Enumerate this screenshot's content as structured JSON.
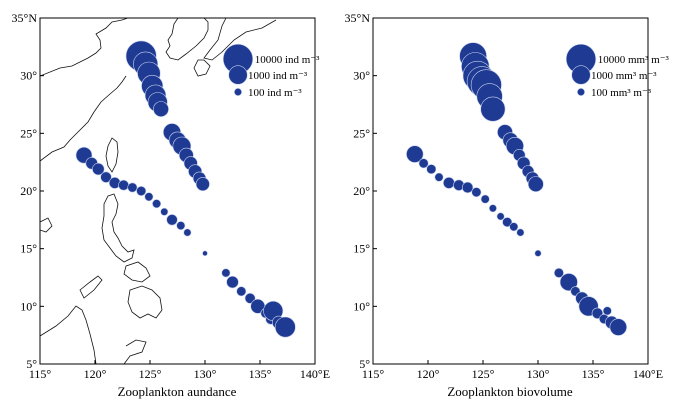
{
  "panels": [
    {
      "id": "abundance",
      "xlabel": "Zooplankton aundance",
      "legend": [
        {
          "label": "10000 ind m⁻³",
          "value": 10000
        },
        {
          "label": "1000 ind m⁻³",
          "value": 1000
        },
        {
          "label": "100 ind m⁻³",
          "value": 100
        }
      ],
      "stations": [
        {
          "lon": 124.2,
          "lat": 31.7,
          "value": 12000
        },
        {
          "lon": 124.6,
          "lat": 31.0,
          "value": 3500
        },
        {
          "lon": 124.9,
          "lat": 30.2,
          "value": 2500
        },
        {
          "lon": 125.2,
          "lat": 29.1,
          "value": 1800
        },
        {
          "lon": 125.5,
          "lat": 28.3,
          "value": 1600
        },
        {
          "lon": 125.7,
          "lat": 27.7,
          "value": 1200
        },
        {
          "lon": 126.0,
          "lat": 27.1,
          "value": 500
        },
        {
          "lon": 127.0,
          "lat": 25.1,
          "value": 800
        },
        {
          "lon": 127.5,
          "lat": 24.4,
          "value": 700
        },
        {
          "lon": 127.9,
          "lat": 23.9,
          "value": 900
        },
        {
          "lon": 128.3,
          "lat": 23.1,
          "value": 400
        },
        {
          "lon": 128.7,
          "lat": 22.4,
          "value": 350
        },
        {
          "lon": 129.1,
          "lat": 21.7,
          "value": 350
        },
        {
          "lon": 129.5,
          "lat": 21.1,
          "value": 300
        },
        {
          "lon": 129.8,
          "lat": 20.6,
          "value": 350
        },
        {
          "lon": 119.0,
          "lat": 23.1,
          "value": 600
        },
        {
          "lon": 119.7,
          "lat": 22.4,
          "value": 250
        },
        {
          "lon": 120.3,
          "lat": 21.9,
          "value": 250
        },
        {
          "lon": 121.0,
          "lat": 21.2,
          "value": 200
        },
        {
          "lon": 121.8,
          "lat": 20.7,
          "value": 220
        },
        {
          "lon": 122.6,
          "lat": 20.5,
          "value": 180
        },
        {
          "lon": 123.4,
          "lat": 20.3,
          "value": 150
        },
        {
          "lon": 124.2,
          "lat": 20.0,
          "value": 150
        },
        {
          "lon": 124.9,
          "lat": 19.5,
          "value": 120
        },
        {
          "lon": 125.6,
          "lat": 18.9,
          "value": 120
        },
        {
          "lon": 126.3,
          "lat": 18.2,
          "value": 100
        },
        {
          "lon": 127.0,
          "lat": 17.5,
          "value": 200
        },
        {
          "lon": 127.8,
          "lat": 17.0,
          "value": 120
        },
        {
          "lon": 128.4,
          "lat": 16.4,
          "value": 100
        },
        {
          "lon": 130.0,
          "lat": 14.6,
          "value": 60
        },
        {
          "lon": 131.9,
          "lat": 12.9,
          "value": 120
        },
        {
          "lon": 132.5,
          "lat": 12.1,
          "value": 250
        },
        {
          "lon": 133.3,
          "lat": 11.3,
          "value": 150
        },
        {
          "lon": 134.1,
          "lat": 10.7,
          "value": 180
        },
        {
          "lon": 134.8,
          "lat": 10.0,
          "value": 400
        },
        {
          "lon": 135.5,
          "lat": 9.4,
          "value": 150
        },
        {
          "lon": 136.0,
          "lat": 8.9,
          "value": 200
        },
        {
          "lon": 136.2,
          "lat": 9.6,
          "value": 1200
        },
        {
          "lon": 136.7,
          "lat": 8.6,
          "value": 300
        },
        {
          "lon": 137.3,
          "lat": 8.2,
          "value": 1400
        }
      ]
    },
    {
      "id": "biovolume",
      "xlabel": "Zooplankton biovolume",
      "legend": [
        {
          "label": "10000 mm³ m⁻³",
          "value": 10000
        },
        {
          "label": "1000 mm³ m⁻³",
          "value": 1000
        },
        {
          "label": "100 mm³ m⁻³",
          "value": 100
        }
      ],
      "stations": [
        {
          "lon": 124.1,
          "lat": 31.7,
          "value": 6000
        },
        {
          "lon": 124.3,
          "lat": 30.8,
          "value": 7000
        },
        {
          "lon": 124.5,
          "lat": 30.0,
          "value": 9000
        },
        {
          "lon": 124.9,
          "lat": 29.5,
          "value": 10000
        },
        {
          "lon": 125.3,
          "lat": 29.2,
          "value": 12000
        },
        {
          "lon": 125.6,
          "lat": 28.2,
          "value": 4500
        },
        {
          "lon": 125.9,
          "lat": 27.1,
          "value": 3500
        },
        {
          "lon": 127.0,
          "lat": 25.1,
          "value": 500
        },
        {
          "lon": 127.5,
          "lat": 24.4,
          "value": 500
        },
        {
          "lon": 127.9,
          "lat": 23.9,
          "value": 800
        },
        {
          "lon": 128.3,
          "lat": 23.1,
          "value": 250
        },
        {
          "lon": 128.7,
          "lat": 22.4,
          "value": 300
        },
        {
          "lon": 129.1,
          "lat": 21.7,
          "value": 250
        },
        {
          "lon": 129.5,
          "lat": 21.1,
          "value": 300
        },
        {
          "lon": 129.8,
          "lat": 20.6,
          "value": 500
        },
        {
          "lon": 118.8,
          "lat": 23.2,
          "value": 700
        },
        {
          "lon": 119.6,
          "lat": 22.4,
          "value": 150
        },
        {
          "lon": 120.3,
          "lat": 21.9,
          "value": 150
        },
        {
          "lon": 121.0,
          "lat": 21.2,
          "value": 120
        },
        {
          "lon": 121.9,
          "lat": 20.7,
          "value": 220
        },
        {
          "lon": 122.8,
          "lat": 20.5,
          "value": 200
        },
        {
          "lon": 123.6,
          "lat": 20.3,
          "value": 200
        },
        {
          "lon": 124.4,
          "lat": 19.9,
          "value": 150
        },
        {
          "lon": 125.2,
          "lat": 19.3,
          "value": 120
        },
        {
          "lon": 125.9,
          "lat": 18.5,
          "value": 100
        },
        {
          "lon": 126.6,
          "lat": 17.8,
          "value": 100
        },
        {
          "lon": 127.2,
          "lat": 17.3,
          "value": 150
        },
        {
          "lon": 127.8,
          "lat": 16.9,
          "value": 120
        },
        {
          "lon": 128.4,
          "lat": 16.4,
          "value": 100
        },
        {
          "lon": 130.0,
          "lat": 14.6,
          "value": 80
        },
        {
          "lon": 131.9,
          "lat": 12.9,
          "value": 150
        },
        {
          "lon": 132.8,
          "lat": 12.1,
          "value": 800
        },
        {
          "lon": 133.4,
          "lat": 11.3,
          "value": 150
        },
        {
          "lon": 134.0,
          "lat": 10.7,
          "value": 300
        },
        {
          "lon": 134.6,
          "lat": 10.0,
          "value": 1200
        },
        {
          "lon": 135.4,
          "lat": 9.4,
          "value": 200
        },
        {
          "lon": 136.0,
          "lat": 8.9,
          "value": 150
        },
        {
          "lon": 136.3,
          "lat": 9.6,
          "value": 120
        },
        {
          "lon": 136.7,
          "lat": 8.6,
          "value": 300
        },
        {
          "lon": 137.3,
          "lat": 8.2,
          "value": 700
        }
      ]
    }
  ],
  "axes": {
    "lon_ticks": [
      "115°",
      "120°",
      "125°",
      "130°",
      "135°",
      "140°E"
    ],
    "lat_ticks": [
      "5°",
      "10°",
      "15°",
      "20°",
      "25°",
      "30°",
      "35°N"
    ],
    "lon_range": [
      115,
      140
    ],
    "lat_range": [
      5,
      35
    ]
  },
  "colors": {
    "marker": "#1f3a93",
    "marker_edge": "#c9d3ef",
    "coast": "#111111"
  }
}
